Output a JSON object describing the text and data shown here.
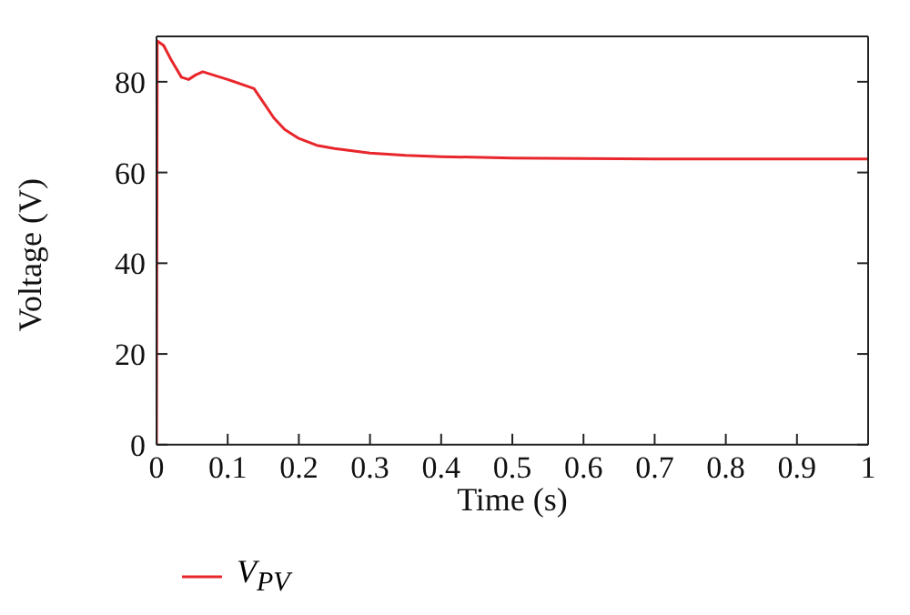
{
  "chart_data": {
    "type": "line",
    "xlabel": "Time (s)",
    "ylabel": "Voltage (V)",
    "xlim": [
      0,
      1
    ],
    "xticks": [
      0,
      0.1,
      0.2,
      0.3,
      0.4,
      0.5,
      0.6,
      0.7,
      0.8,
      0.9,
      1
    ],
    "ylim": [
      0,
      90
    ],
    "yticks": [
      0,
      20,
      40,
      60,
      80
    ],
    "legend": "bottom left",
    "marker": "none",
    "line_style": "solid",
    "series": [
      {
        "name": "V$_{PV}$",
        "color": "#e8262b",
        "x": [
          0,
          0.001,
          0.01,
          0.02,
          0.035,
          0.045,
          0.055,
          0.065,
          0.1,
          0.137,
          0.15,
          0.165,
          0.18,
          0.2,
          0.225,
          0.25,
          0.3,
          0.35,
          0.4,
          0.5,
          0.7,
          1
        ],
        "values": [
          0,
          89,
          88,
          85,
          81,
          80.5,
          81.5,
          82.2,
          80.5,
          78.5,
          75.5,
          72,
          69.5,
          67.5,
          66,
          65.3,
          64.3,
          63.8,
          63.5,
          63.2,
          63,
          63
        ]
      }
    ]
  }
}
